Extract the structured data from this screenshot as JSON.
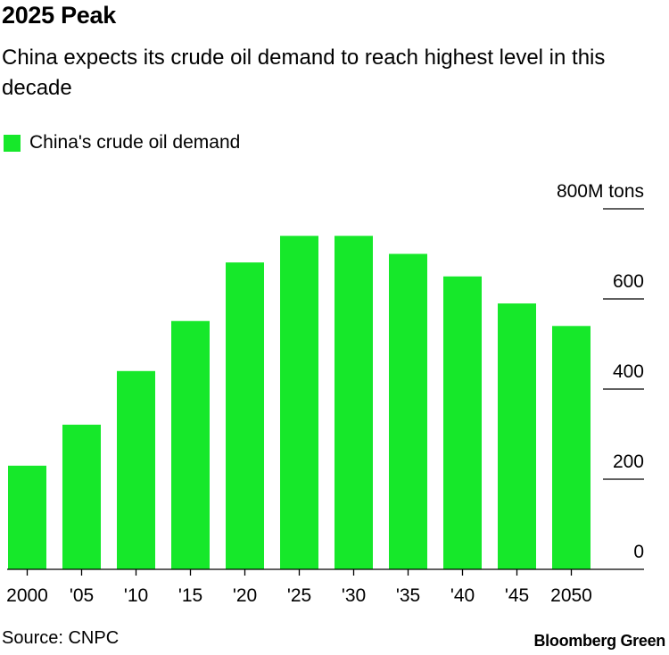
{
  "header": {
    "title": "2025 Peak",
    "subtitle": "China expects its crude oil demand to reach highest level in this decade"
  },
  "legend": {
    "label": "China's crude oil demand",
    "color": "#16e82a"
  },
  "footer": {
    "source": "Source: CNPC",
    "brand": "Bloomberg Green"
  },
  "chart_data": {
    "type": "bar",
    "title": "2025 Peak",
    "subtitle": "China expects its crude oil demand to reach highest level in this decade",
    "xlabel": "",
    "ylabel": "",
    "categories": [
      "2000",
      "'05",
      "'10",
      "'15",
      "'20",
      "'25",
      "'30",
      "'35",
      "'40",
      "'45",
      "2050"
    ],
    "series": [
      {
        "name": "China's crude oil demand",
        "values": [
          230,
          321,
          440,
          551,
          681,
          740,
          740,
          700,
          650,
          590,
          540
        ]
      }
    ],
    "ylim": [
      0,
      800
    ],
    "yticks": [
      0,
      200,
      400,
      600,
      800
    ],
    "ytick_labels": [
      "0",
      "200",
      "400",
      "600",
      "800M tons"
    ],
    "bar_color": "#16e82a",
    "grid": false,
    "legend_position": "top-left"
  }
}
